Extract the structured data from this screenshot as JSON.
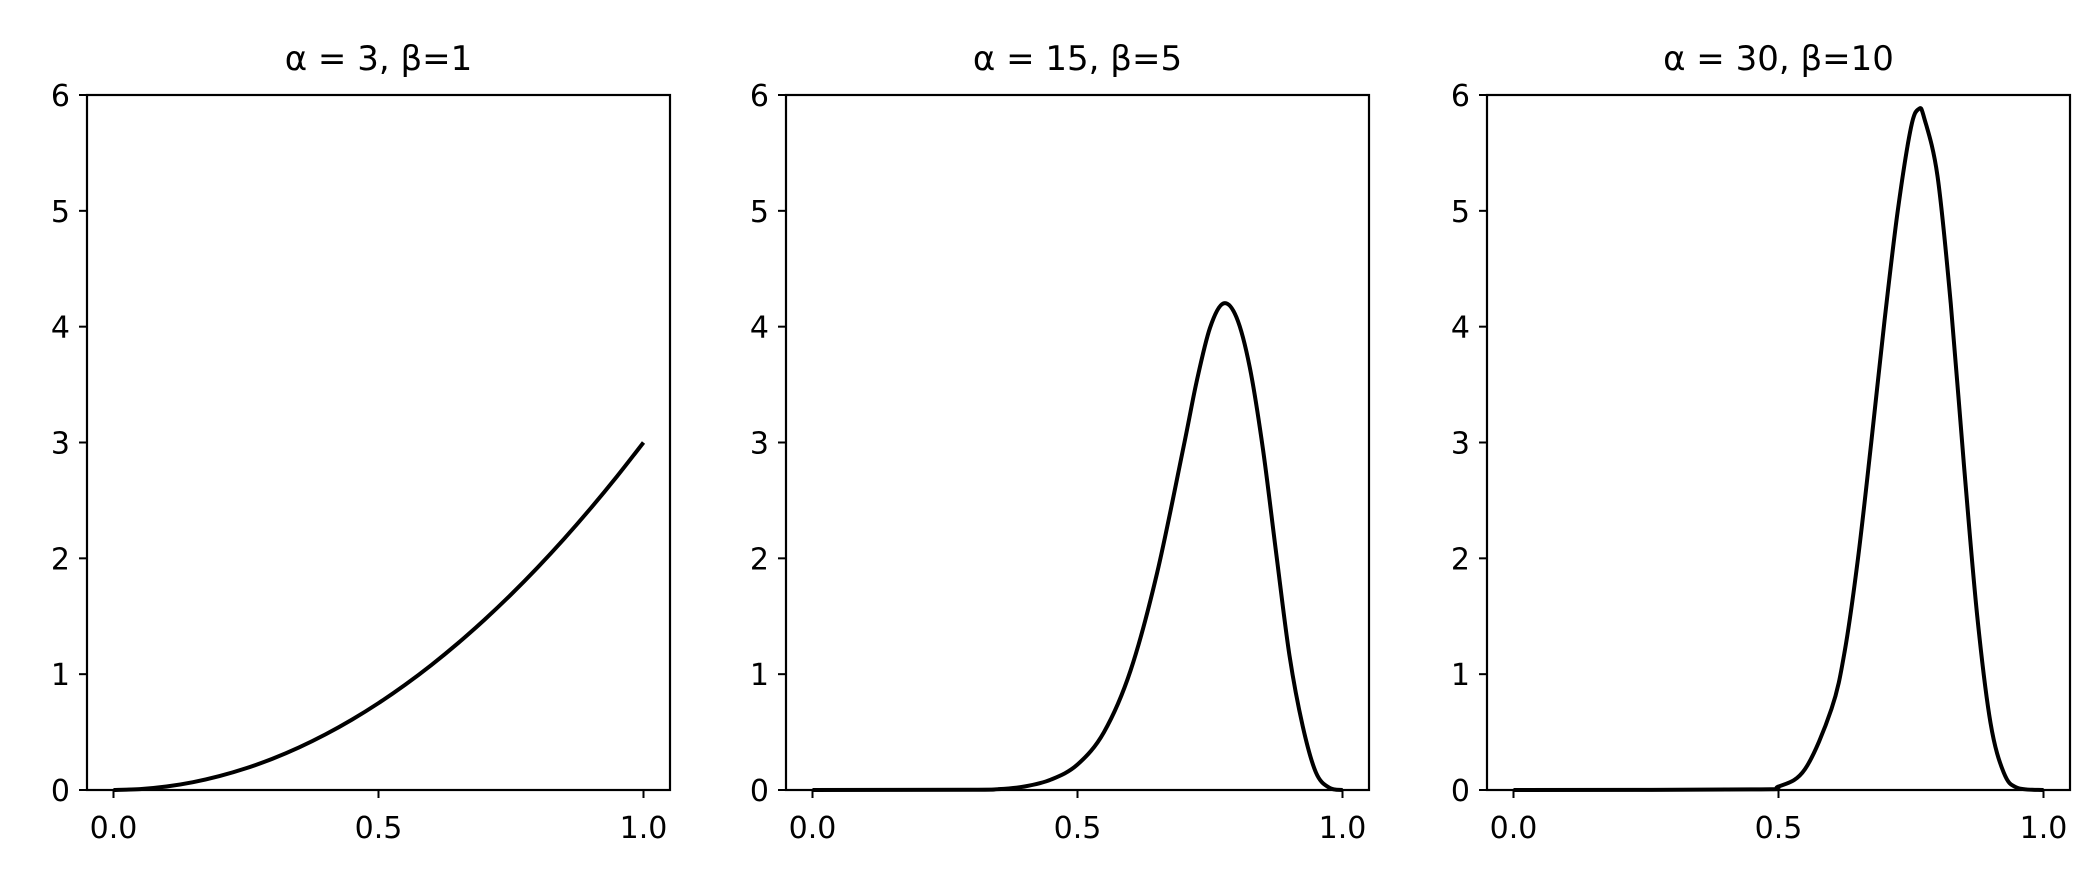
{
  "figure": {
    "background_color": "#ffffff",
    "line_color": "#000000"
  },
  "chart_data": [
    {
      "type": "line",
      "title": "α = 3, β=1",
      "xlabel": "",
      "ylabel": "",
      "xlim": [
        -0.05,
        1.05
      ],
      "ylim": [
        0,
        6
      ],
      "xticks": [
        "0.0",
        "0.5",
        "1.0"
      ],
      "xtick_values": [
        0.0,
        0.5,
        1.0
      ],
      "yticks": [
        "0",
        "1",
        "2",
        "3",
        "4",
        "5",
        "6"
      ],
      "ytick_values": [
        0,
        1,
        2,
        3,
        4,
        5,
        6
      ],
      "grid": false,
      "series": [
        {
          "x": [
            0.0,
            0.05,
            0.1,
            0.15,
            0.2,
            0.25,
            0.3,
            0.35,
            0.4,
            0.45,
            0.5,
            0.55,
            0.6,
            0.65,
            0.7,
            0.75,
            0.8,
            0.85,
            0.9,
            0.95,
            1.0
          ],
          "values": [
            0.0,
            0.0075,
            0.03,
            0.0675,
            0.12,
            0.1875,
            0.27,
            0.3675,
            0.48,
            0.6075,
            0.75,
            0.9075,
            1.08,
            1.2675,
            1.47,
            1.6875,
            1.92,
            2.1675,
            2.43,
            2.7075,
            3.0
          ]
        }
      ]
    },
    {
      "type": "line",
      "title": "α = 15, β=5",
      "xlabel": "",
      "ylabel": "",
      "xlim": [
        -0.05,
        1.05
      ],
      "ylim": [
        0,
        6
      ],
      "xticks": [
        "0.0",
        "0.5",
        "1.0"
      ],
      "xtick_values": [
        0.0,
        0.5,
        1.0
      ],
      "yticks": [
        "0",
        "1",
        "2",
        "3",
        "4",
        "5",
        "6"
      ],
      "ytick_values": [
        0,
        1,
        2,
        3,
        4,
        5,
        6
      ],
      "grid": false,
      "series": [
        {
          "x": [
            0.0,
            0.3,
            0.35,
            0.4,
            0.45,
            0.5,
            0.55,
            0.6,
            0.65,
            0.7,
            0.725,
            0.75,
            0.775,
            0.8,
            0.825,
            0.85,
            0.875,
            0.9,
            0.925,
            0.95,
            0.975,
            1.0
          ],
          "values": [
            0.0,
            0.002,
            0.007,
            0.03,
            0.09,
            0.22,
            0.5,
            1.03,
            1.87,
            2.96,
            3.53,
            3.99,
            4.2,
            4.08,
            3.65,
            2.94,
            2.04,
            1.16,
            0.55,
            0.15,
            0.02,
            0.0
          ]
        }
      ]
    },
    {
      "type": "line",
      "title": "α = 30, β=10",
      "xlabel": "",
      "ylabel": "",
      "xlim": [
        -0.05,
        1.05
      ],
      "ylim": [
        0,
        6
      ],
      "xticks": [
        "0.0",
        "0.5",
        "1.0"
      ],
      "xtick_values": [
        0.0,
        0.5,
        1.0
      ],
      "yticks": [
        "0",
        "1",
        "2",
        "3",
        "4",
        "5",
        "6"
      ],
      "ytick_values": [
        0,
        1,
        2,
        3,
        4,
        5,
        6
      ],
      "grid": false,
      "series": [
        {
          "x": [
            0.0,
            0.45,
            0.5,
            0.55,
            0.6,
            0.625,
            0.65,
            0.675,
            0.7,
            0.725,
            0.75,
            0.765,
            0.775,
            0.8,
            0.825,
            0.85,
            0.875,
            0.9,
            0.925,
            0.95,
            1.0
          ],
          "values": [
            0.0,
            0.005,
            0.03,
            0.18,
            0.7,
            1.2,
            2.0,
            3.0,
            4.05,
            5.0,
            5.72,
            5.88,
            5.8,
            5.3,
            4.2,
            2.8,
            1.5,
            0.58,
            0.15,
            0.02,
            0.0
          ]
        }
      ]
    }
  ]
}
